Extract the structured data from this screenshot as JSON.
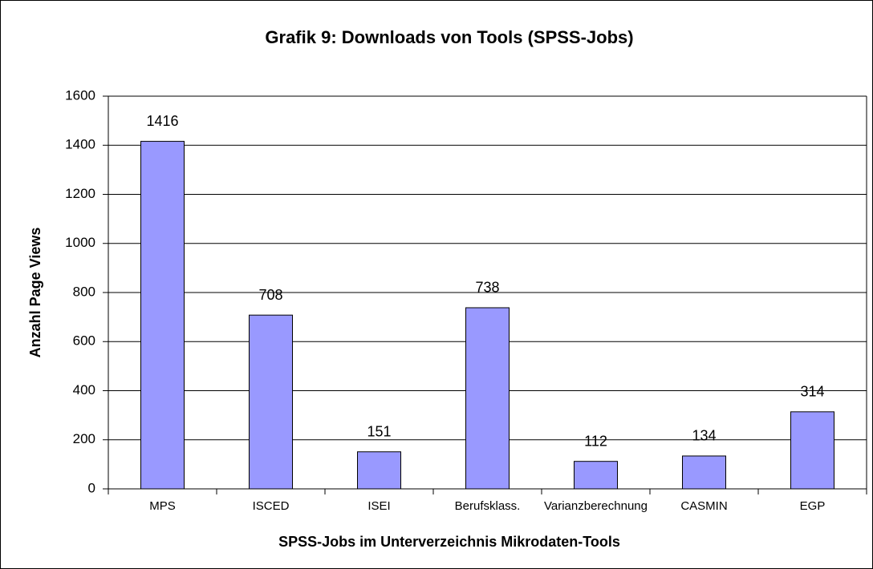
{
  "chart_data": {
    "type": "bar",
    "title": "Grafik 9: Downloads von Tools (SPSS-Jobs)",
    "x_label": "SPSS-Jobs im Unterverzeichnis Mikrodaten-Tools",
    "y_label": "Anzahl Page Views",
    "categories": [
      "MPS",
      "ISCED",
      "ISEI",
      "Berufsklass.",
      "Varianzberechnung",
      "CASMIN",
      "EGP"
    ],
    "values": [
      1416,
      708,
      151,
      738,
      112,
      134,
      314
    ],
    "color": "#9999ff",
    "ylim": [
      0,
      1600
    ],
    "yticks": [
      0,
      200,
      400,
      600,
      800,
      1000,
      1200,
      1400,
      1600
    ],
    "grid": true
  }
}
